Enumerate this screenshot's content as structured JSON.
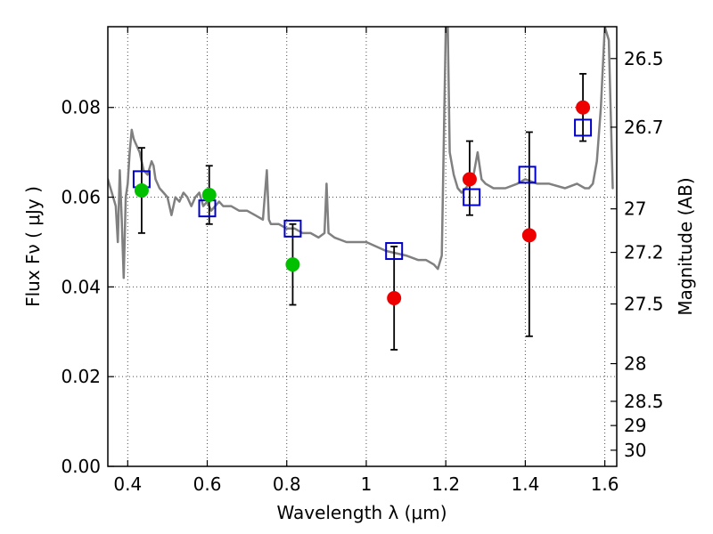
{
  "chart_data": {
    "type": "scatter",
    "xlabel": "Wavelength  λ (μm)",
    "ylabel": "Flux  Fν  ( μJy )",
    "y2label": "Magnitude (AB)",
    "xlim": [
      0.35,
      1.63
    ],
    "ylim": [
      0.0,
      0.098
    ],
    "x_ticks": [
      0.4,
      0.6,
      0.8,
      1.0,
      1.2,
      1.4,
      1.6
    ],
    "x_tick_labels": [
      "0.4",
      "0.6",
      "0.8",
      "1",
      "1.2",
      "1.4",
      "1.6"
    ],
    "y_ticks": [
      0.0,
      0.02,
      0.04,
      0.06,
      0.08
    ],
    "y_tick_labels": [
      "0.00",
      "0.02",
      "0.04",
      "0.06",
      "0.08"
    ],
    "y2_ticks": [
      {
        "label": "26.5",
        "flux": 0.0909
      },
      {
        "label": "26.7",
        "flux": 0.0756
      },
      {
        "label": "27",
        "flux": 0.0574
      },
      {
        "label": "27.2",
        "flux": 0.0477
      },
      {
        "label": "27.5",
        "flux": 0.0362
      },
      {
        "label": "28",
        "flux": 0.0229
      },
      {
        "label": "28.5",
        "flux": 0.0145
      },
      {
        "label": "29",
        "flux": 0.0091
      },
      {
        "label": "30",
        "flux": 0.0036
      }
    ],
    "grid": true,
    "colors": {
      "spectrum": "#808080",
      "model_box": "#0000cc",
      "optical_points": "#00c000",
      "nir_points": "#ee0000",
      "error_bar": "#000000"
    },
    "spectrum": {
      "x": [
        0.35,
        0.36,
        0.37,
        0.375,
        0.38,
        0.385,
        0.39,
        0.395,
        0.4,
        0.405,
        0.41,
        0.415,
        0.42,
        0.43,
        0.44,
        0.45,
        0.46,
        0.465,
        0.47,
        0.48,
        0.49,
        0.5,
        0.51,
        0.52,
        0.53,
        0.54,
        0.55,
        0.56,
        0.57,
        0.58,
        0.59,
        0.6,
        0.61,
        0.62,
        0.63,
        0.64,
        0.66,
        0.68,
        0.7,
        0.72,
        0.74,
        0.75,
        0.755,
        0.76,
        0.78,
        0.8,
        0.82,
        0.84,
        0.86,
        0.88,
        0.895,
        0.9,
        0.905,
        0.92,
        0.95,
        1.0,
        1.05,
        1.1,
        1.13,
        1.15,
        1.17,
        1.18,
        1.19,
        1.2,
        1.205,
        1.21,
        1.22,
        1.23,
        1.24,
        1.25,
        1.26,
        1.27,
        1.28,
        1.29,
        1.3,
        1.32,
        1.35,
        1.38,
        1.4,
        1.43,
        1.46,
        1.5,
        1.53,
        1.55,
        1.56,
        1.57,
        1.58,
        1.59,
        1.6,
        1.61,
        1.62
      ],
      "y": [
        0.064,
        0.061,
        0.058,
        0.05,
        0.066,
        0.055,
        0.042,
        0.06,
        0.063,
        0.07,
        0.075,
        0.073,
        0.072,
        0.07,
        0.066,
        0.065,
        0.068,
        0.067,
        0.064,
        0.062,
        0.061,
        0.06,
        0.056,
        0.06,
        0.059,
        0.061,
        0.06,
        0.058,
        0.06,
        0.061,
        0.058,
        0.059,
        0.057,
        0.058,
        0.059,
        0.058,
        0.058,
        0.057,
        0.057,
        0.056,
        0.055,
        0.066,
        0.055,
        0.054,
        0.054,
        0.053,
        0.053,
        0.052,
        0.052,
        0.051,
        0.052,
        0.063,
        0.052,
        0.051,
        0.05,
        0.05,
        0.048,
        0.047,
        0.046,
        0.046,
        0.045,
        0.044,
        0.047,
        0.098,
        0.098,
        0.07,
        0.065,
        0.062,
        0.061,
        0.062,
        0.063,
        0.065,
        0.07,
        0.064,
        0.063,
        0.062,
        0.062,
        0.063,
        0.064,
        0.063,
        0.063,
        0.062,
        0.063,
        0.062,
        0.062,
        0.063,
        0.068,
        0.08,
        0.098,
        0.095,
        0.062
      ]
    },
    "series": [
      {
        "marker": "square",
        "color": "#0000cc",
        "x": [
          0.435,
          0.6,
          0.815,
          1.07,
          1.265,
          1.405,
          1.545
        ],
        "y": [
          0.064,
          0.0575,
          0.053,
          0.048,
          0.06,
          0.065,
          0.0755
        ]
      },
      {
        "marker": "circle",
        "color": "#00c000",
        "x": [
          0.435,
          0.605,
          0.815
        ],
        "y": [
          0.0615,
          0.0605,
          0.045
        ],
        "yerr": [
          0.0095,
          0.0065,
          0.009
        ]
      },
      {
        "marker": "circle",
        "color": "#ee0000",
        "x": [
          1.07,
          1.26,
          1.41,
          1.545
        ],
        "y": [
          0.0375,
          0.064,
          0.0515,
          0.08
        ],
        "yerr_low": [
          0.0115,
          0.008,
          0.0225,
          0.0075
        ],
        "yerr_high": [
          0.0115,
          0.0085,
          0.023,
          0.0075
        ]
      }
    ]
  }
}
